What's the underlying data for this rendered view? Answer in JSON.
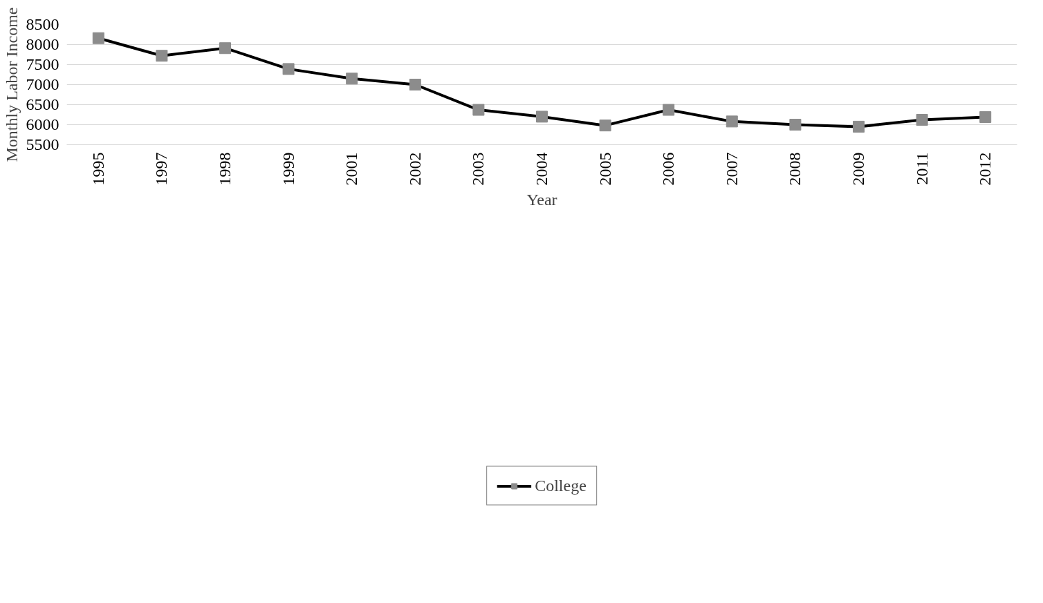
{
  "chart_data": {
    "type": "line",
    "xlabel": "Year",
    "ylabel": "Monthly Labor Income",
    "categories": [
      "1995",
      "1997",
      "1998",
      "1999",
      "2001",
      "2002",
      "2003",
      "2004",
      "2005",
      "2006",
      "2007",
      "2008",
      "2009",
      "2011",
      "2012"
    ],
    "series": [
      {
        "name": "College",
        "color": "#000000",
        "values": [
          8160,
          7720,
          7910,
          7390,
          7150,
          7000,
          6370,
          6200,
          5980,
          6370,
          6080,
          6000,
          5950,
          6120,
          6190
        ]
      }
    ],
    "ylim": [
      5500,
      8500
    ],
    "yticks": [
      5500,
      6000,
      6500,
      7000,
      7500,
      8000,
      8500
    ],
    "grid": "y",
    "legend": "bottom",
    "marker": "square",
    "line_style": "solid"
  }
}
